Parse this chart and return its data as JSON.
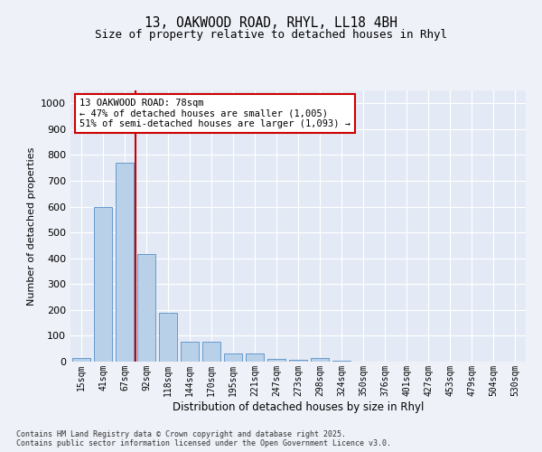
{
  "title_line1": "13, OAKWOOD ROAD, RHYL, LL18 4BH",
  "title_line2": "Size of property relative to detached houses in Rhyl",
  "xlabel": "Distribution of detached houses by size in Rhyl",
  "ylabel": "Number of detached properties",
  "categories": [
    "15sqm",
    "41sqm",
    "67sqm",
    "92sqm",
    "118sqm",
    "144sqm",
    "170sqm",
    "195sqm",
    "221sqm",
    "247sqm",
    "273sqm",
    "298sqm",
    "324sqm",
    "350sqm",
    "376sqm",
    "401sqm",
    "427sqm",
    "453sqm",
    "479sqm",
    "504sqm",
    "530sqm"
  ],
  "values": [
    15,
    600,
    770,
    415,
    190,
    78,
    78,
    32,
    32,
    12,
    8,
    15,
    5,
    0,
    0,
    0,
    0,
    0,
    0,
    0,
    0
  ],
  "bar_color": "#b8d0e8",
  "bar_edge_color": "#6699cc",
  "vline_x": 2.5,
  "vline_color": "#cc0000",
  "annotation_text": "13 OAKWOOD ROAD: 78sqm\n← 47% of detached houses are smaller (1,005)\n51% of semi-detached houses are larger (1,093) →",
  "annotation_box_color": "#ffffff",
  "annotation_box_edge_color": "#cc0000",
  "ylim": [
    0,
    1050
  ],
  "yticks": [
    0,
    100,
    200,
    300,
    400,
    500,
    600,
    700,
    800,
    900,
    1000
  ],
  "footer_text": "Contains HM Land Registry data © Crown copyright and database right 2025.\nContains public sector information licensed under the Open Government Licence v3.0.",
  "background_color": "#eef1f8",
  "plot_bg_color": "#e4eaf5",
  "fig_width": 6.0,
  "fig_height": 5.0,
  "dpi": 100
}
